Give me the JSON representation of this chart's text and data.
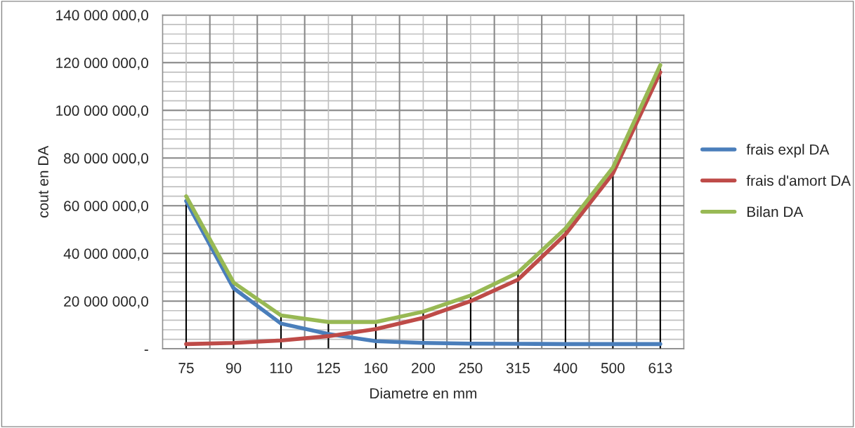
{
  "chart_data": {
    "type": "line",
    "xlabel": "Diametre en mm",
    "ylabel": "cout en DA",
    "categories": [
      "75",
      "90",
      "110",
      "125",
      "160",
      "200",
      "250",
      "315",
      "400",
      "500",
      "613"
    ],
    "series": [
      {
        "name": "frais expl DA",
        "color": "#4a7ebb",
        "values": [
          62000000,
          25400000,
          10600000,
          6200000,
          3200000,
          2500000,
          2200000,
          2100000,
          2000000,
          2000000,
          2000000
        ]
      },
      {
        "name": "frais d'amort DA",
        "color": "#be4b48",
        "values": [
          2000000,
          2500000,
          3500000,
          5300000,
          8300000,
          13000000,
          20000000,
          29000000,
          48000000,
          73500000,
          116000000
        ]
      },
      {
        "name": "Bilan DA",
        "color": "#98b954",
        "values": [
          64000000,
          27800000,
          14000000,
          11200000,
          11200000,
          15600000,
          22400000,
          32000000,
          50500000,
          76000000,
          119000000
        ],
        "errors": [
          [
            0,
            64000000
          ],
          [
            0,
            27800000
          ],
          [
            0,
            14000000
          ],
          [
            0,
            11200000
          ],
          [
            0,
            11200000
          ],
          [
            0,
            15600000
          ],
          [
            0,
            22400000
          ],
          [
            0,
            32000000
          ],
          [
            0,
            50500000
          ],
          [
            0,
            76000000
          ],
          [
            0,
            119000000
          ]
        ]
      }
    ],
    "ylim": [
      0,
      140000000
    ],
    "yticks": [
      {
        "value": 0,
        "label": "-"
      },
      {
        "value": 20000000,
        "label": "20 000 000,0"
      },
      {
        "value": 40000000,
        "label": "40 000 000,0"
      },
      {
        "value": 60000000,
        "label": "60 000 000,0"
      },
      {
        "value": 80000000,
        "label": "80 000 000,0"
      },
      {
        "value": 100000000,
        "label": "100 000 000,0"
      },
      {
        "value": 120000000,
        "label": "120 000 000,0"
      },
      {
        "value": 140000000,
        "label": "140 000 000,0"
      }
    ],
    "grid": true,
    "legend": "right",
    "marker": "none",
    "line_style": "solid"
  }
}
